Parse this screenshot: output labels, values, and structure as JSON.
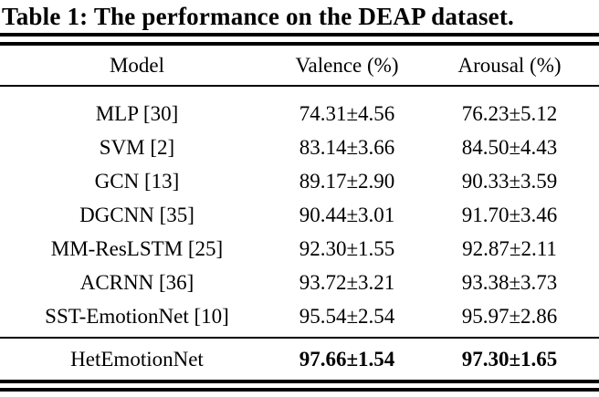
{
  "caption": "Table 1: The performance on the DEAP dataset.",
  "table": {
    "columns": [
      "Model",
      "Valence (%)",
      "Arousal (%)"
    ],
    "rows": [
      {
        "model": "MLP [30]",
        "valence": "74.31±4.56",
        "arousal": "76.23±5.12"
      },
      {
        "model": "SVM [2]",
        "valence": "83.14±3.66",
        "arousal": "84.50±4.43"
      },
      {
        "model": "GCN [13]",
        "valence": "89.17±2.90",
        "arousal": "90.33±3.59"
      },
      {
        "model": "DGCNN [35]",
        "valence": "90.44±3.01",
        "arousal": "91.70±3.46"
      },
      {
        "model": "MM-ResLSTM [25]",
        "valence": "92.30±1.55",
        "arousal": "92.87±2.11"
      },
      {
        "model": "ACRNN [36]",
        "valence": "93.72±3.21",
        "arousal": "93.38±3.73"
      },
      {
        "model": "SST-EmotionNet [10]",
        "valence": "95.54±2.54",
        "arousal": "95.97±2.86"
      }
    ],
    "highlight_row": {
      "model": "HetEmotionNet",
      "valence": "97.66±1.54",
      "arousal": "97.30±1.65"
    }
  },
  "colors": {
    "background": "#ffffff",
    "text": "#000000",
    "rule": "#000000"
  }
}
